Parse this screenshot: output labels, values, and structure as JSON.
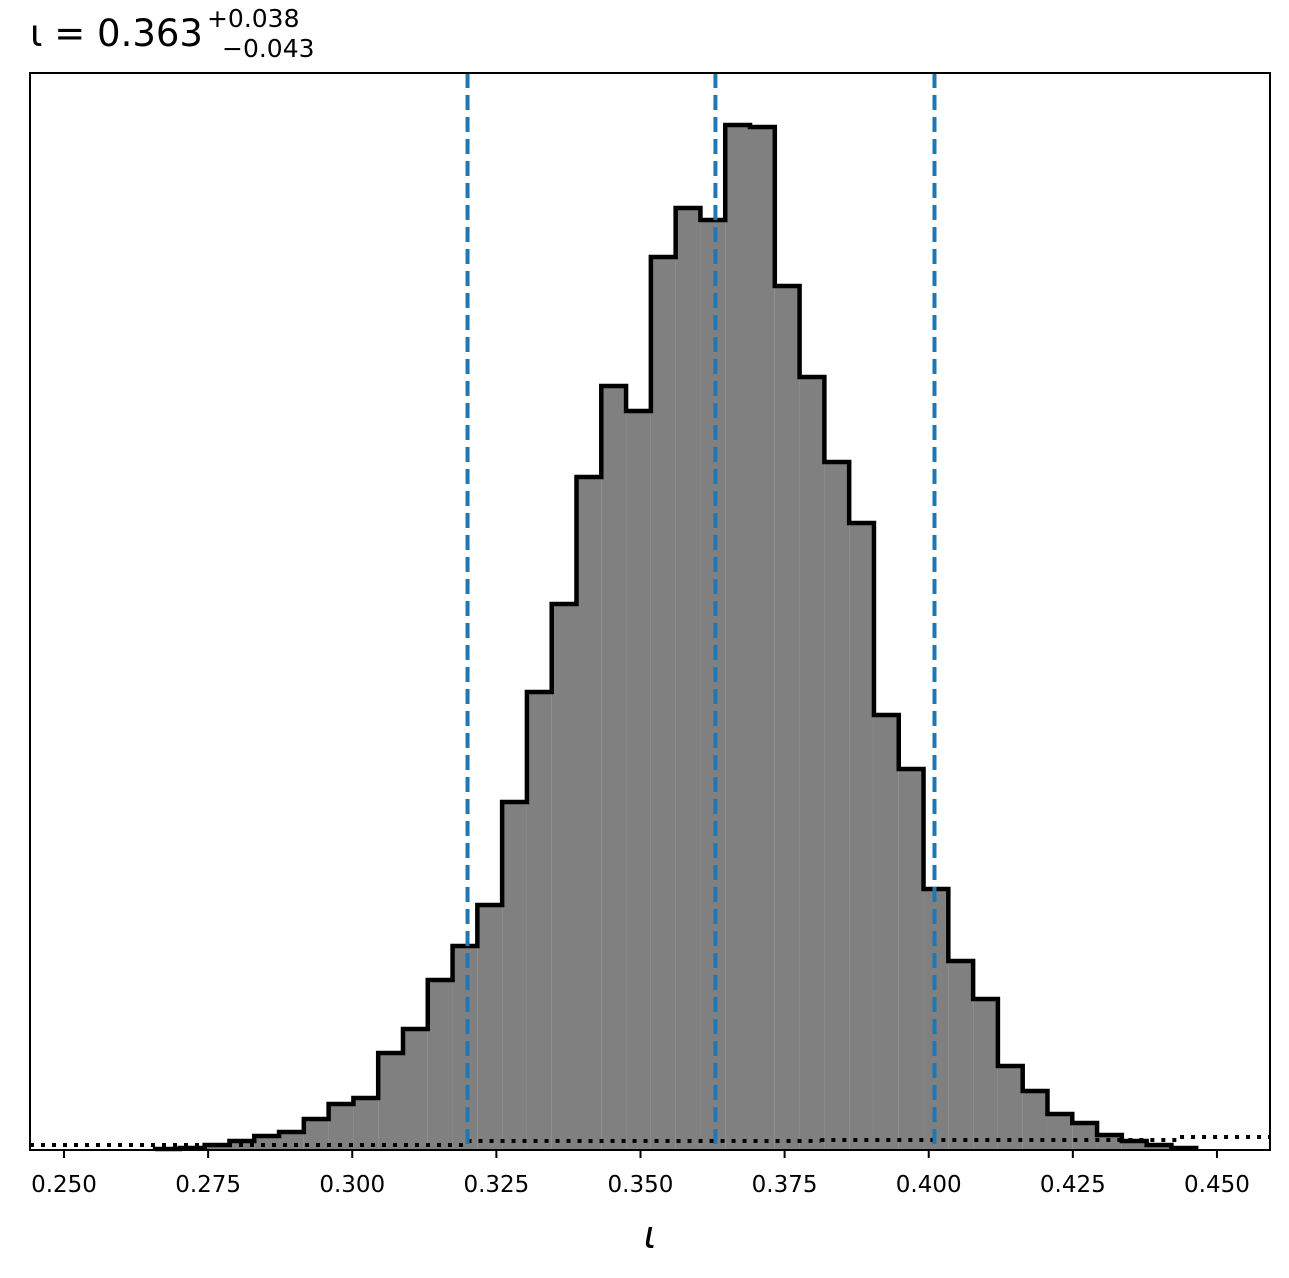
{
  "chart_data": {
    "type": "histogram",
    "title": "ι = 0.363",
    "title_superscript": "+0.038",
    "title_subscript": "−0.043",
    "xlabel": "ι",
    "color": "#808080",
    "edge_color": "#000000",
    "bins": [
      0.2658,
      0.2701,
      0.2744,
      0.2787,
      0.283,
      0.2873,
      0.2916,
      0.2959,
      0.3002,
      0.3045,
      0.3088,
      0.3131,
      0.3174,
      0.3217,
      0.326,
      0.3303,
      0.3346,
      0.3389,
      0.3432,
      0.3475,
      0.3518,
      0.3561,
      0.3604,
      0.3647,
      0.369,
      0.3733,
      0.3776,
      0.3819,
      0.3862,
      0.3905,
      0.3948,
      0.3991,
      0.4034,
      0.4077,
      0.412,
      0.4163,
      0.4206,
      0.4249,
      0.4292,
      0.4335,
      0.4378,
      0.4421,
      0.4464
    ],
    "values": [
      1,
      2,
      5,
      9,
      14,
      18,
      31,
      46,
      52,
      97,
      121,
      170,
      204,
      245,
      348,
      458,
      546,
      673,
      764,
      739,
      893,
      942,
      930,
      1025,
      1023,
      864,
      773,
      688,
      627,
      435,
      381,
      261,
      189,
      151,
      84,
      59,
      36,
      27,
      15,
      9,
      5,
      2
    ],
    "reference_line": {
      "bins": [
        0.2441,
        0.32,
        0.3812,
        0.4436,
        0.4592
      ],
      "values": [
        5,
        9,
        10,
        13
      ],
      "color": "#000000",
      "style": "dotted"
    },
    "vlines": {
      "values": [
        0.32,
        0.363,
        0.401
      ],
      "color": "#1f77b4",
      "style": "dashed"
    },
    "xlim": [
      0.2441,
      0.4592
    ],
    "ylim": [
      0,
      1077
    ],
    "xticks": [
      {
        "value": 0.25,
        "label": "0.250"
      },
      0.275,
      {
        "value": 0.3,
        "label": "0.300"
      },
      0.325,
      {
        "value": 0.35,
        "label": "0.350"
      },
      0.375,
      {
        "value": 0.4,
        "label": "0.400"
      },
      0.425,
      {
        "value": 0.45,
        "label": "0.450"
      }
    ],
    "grid": false
  }
}
